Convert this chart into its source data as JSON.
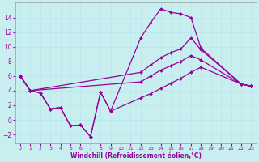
{
  "xlabel": "Windchill (Refroidissement éolien,°C)",
  "bg_color": "#c8eef0",
  "line_color": "#990099",
  "grid_color": "#b8e8ea",
  "xlim": [
    -0.5,
    23.5
  ],
  "ylim": [
    -3.2,
    16
  ],
  "xticks": [
    0,
    1,
    2,
    3,
    4,
    5,
    6,
    7,
    8,
    9,
    10,
    11,
    12,
    13,
    14,
    15,
    16,
    17,
    18,
    19,
    20,
    21,
    22,
    23
  ],
  "yticks": [
    -2,
    0,
    2,
    4,
    6,
    8,
    10,
    12,
    14
  ],
  "line1_x": [
    0,
    1,
    2,
    3,
    4,
    5,
    6,
    7,
    8,
    9,
    12,
    13,
    14,
    15,
    16,
    17,
    18,
    22,
    23
  ],
  "line1_y": [
    6.0,
    4.0,
    3.7,
    1.5,
    1.7,
    -0.8,
    -0.7,
    -2.3,
    3.8,
    1.2,
    11.2,
    13.3,
    15.2,
    14.7,
    14.5,
    14.0,
    9.8,
    4.9,
    4.6
  ],
  "line2_x": [
    0,
    1,
    12,
    13,
    14,
    15,
    16,
    17,
    18,
    22,
    23
  ],
  "line2_y": [
    6.0,
    4.0,
    6.5,
    7.5,
    8.5,
    9.2,
    9.7,
    11.2,
    9.6,
    4.9,
    4.6
  ],
  "line3_x": [
    0,
    1,
    12,
    13,
    14,
    15,
    16,
    17,
    18,
    22,
    23
  ],
  "line3_y": [
    6.0,
    4.0,
    5.2,
    6.0,
    6.8,
    7.4,
    8.0,
    8.8,
    8.2,
    4.9,
    4.6
  ],
  "line4_x": [
    0,
    1,
    2,
    3,
    4,
    5,
    6,
    7,
    8,
    9,
    12,
    13,
    14,
    15,
    16,
    17,
    18,
    22,
    23
  ],
  "line4_y": [
    6.0,
    4.0,
    3.7,
    1.5,
    1.7,
    -0.8,
    -0.7,
    -2.3,
    3.8,
    1.2,
    3.0,
    3.6,
    4.3,
    5.0,
    5.7,
    6.5,
    7.2,
    4.9,
    4.6
  ]
}
